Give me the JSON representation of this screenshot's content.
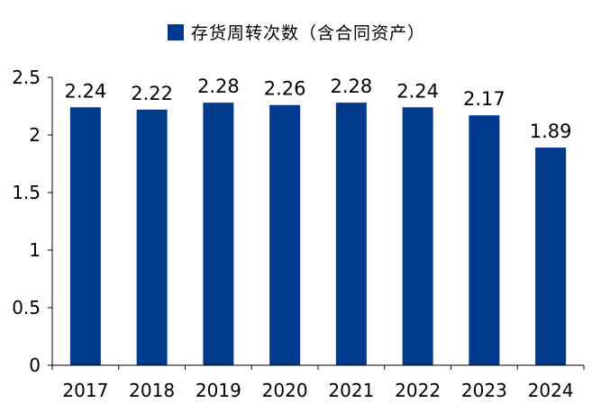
{
  "chart_data": {
    "type": "bar",
    "title": "",
    "xlabel": "",
    "ylabel": "",
    "categories": [
      "2017",
      "2018",
      "2019",
      "2020",
      "2021",
      "2022",
      "2023",
      "2024"
    ],
    "series": [
      {
        "name": "存货周转次数（含合同资产）",
        "values": [
          2.24,
          2.22,
          2.28,
          2.26,
          2.28,
          2.24,
          2.17,
          1.89
        ],
        "value_labels": [
          "2.24",
          "2.22",
          "2.28",
          "2.26",
          "2.28",
          "2.24",
          "2.17",
          "1.89"
        ],
        "color": "#003A8C"
      }
    ],
    "ylim": [
      0,
      2.5
    ],
    "yticks": [
      0,
      0.5,
      1,
      1.5,
      2,
      2.5
    ],
    "ytick_labels": [
      "0",
      "0.5",
      "1",
      "1.5",
      "2",
      "2.5"
    ],
    "grid": false,
    "legend_position": "top-center"
  }
}
